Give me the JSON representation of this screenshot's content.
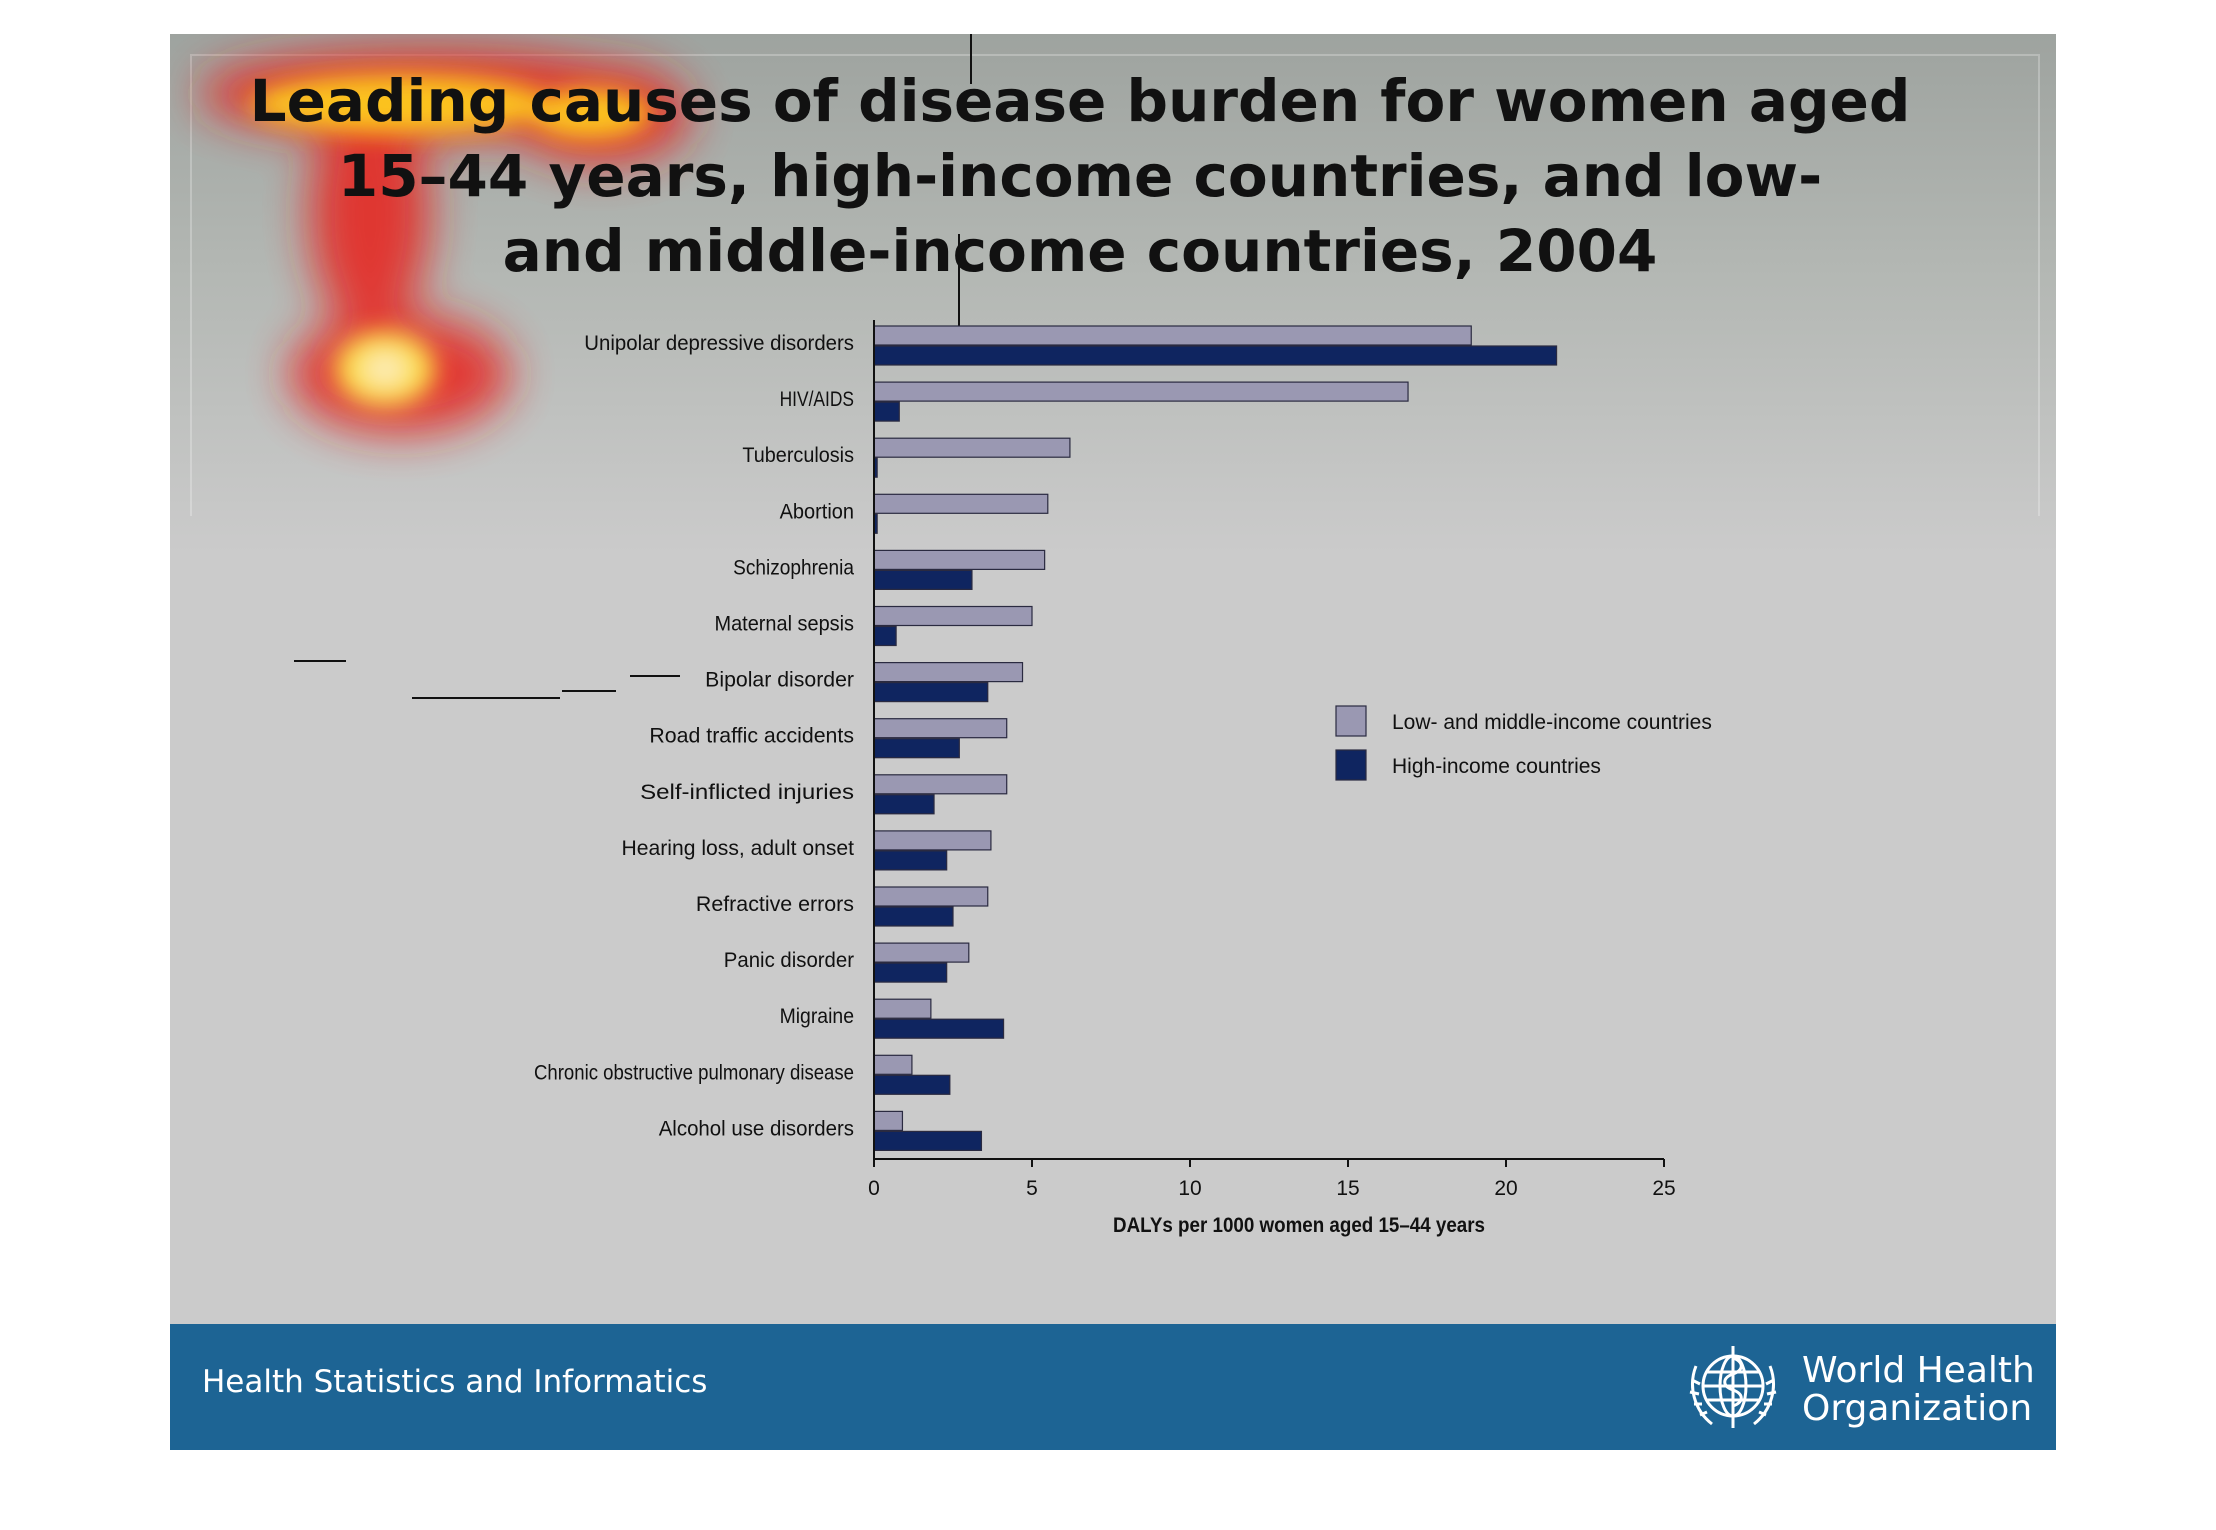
{
  "slide": {
    "title_lines": [
      "Leading causes of disease burden for women aged",
      "15–44 years, high-income countries, and low-",
      "and middle-income countries, 2004"
    ]
  },
  "footer": {
    "text": "Health Statistics and Informatics",
    "org_name_line1": "World Health",
    "org_name_line2": "Organization",
    "logo_icon": "who-emblem-icon",
    "background_color": "#1d6494"
  },
  "chart_data": {
    "type": "bar",
    "orientation": "horizontal",
    "categories": [
      "Unipolar depressive disorders",
      "HIV/AIDS",
      "Tuberculosis",
      "Abortion",
      "Schizophrenia",
      "Maternal sepsis",
      "Bipolar disorder",
      "Road traffic accidents",
      "Self-inflicted injuries",
      "Hearing loss, adult onset",
      "Refractive errors",
      "Panic disorder",
      "Migraine",
      "Chronic obstructive pulmonary disease",
      "Alcohol use disorders"
    ],
    "series": [
      {
        "name": "Low- and middle-income countries",
        "color": "#9a98b2",
        "values": [
          18.9,
          16.9,
          6.2,
          5.5,
          5.4,
          5.0,
          4.7,
          4.2,
          4.2,
          3.7,
          3.6,
          3.0,
          1.8,
          1.2,
          0.9
        ]
      },
      {
        "name": "High-income countries",
        "color": "#0f2560",
        "values": [
          21.6,
          0.8,
          0.1,
          0.1,
          3.1,
          0.7,
          3.6,
          2.7,
          1.9,
          2.3,
          2.5,
          2.3,
          4.1,
          2.4,
          3.4
        ]
      }
    ],
    "x_ticks": [
      "0",
      "5",
      "10",
      "15",
      "20",
      "25"
    ],
    "xlim": [
      0,
      25
    ],
    "xlabel": "DALYs per 1000 women aged 15–44 years",
    "legend_position": "right",
    "grid": false
  }
}
